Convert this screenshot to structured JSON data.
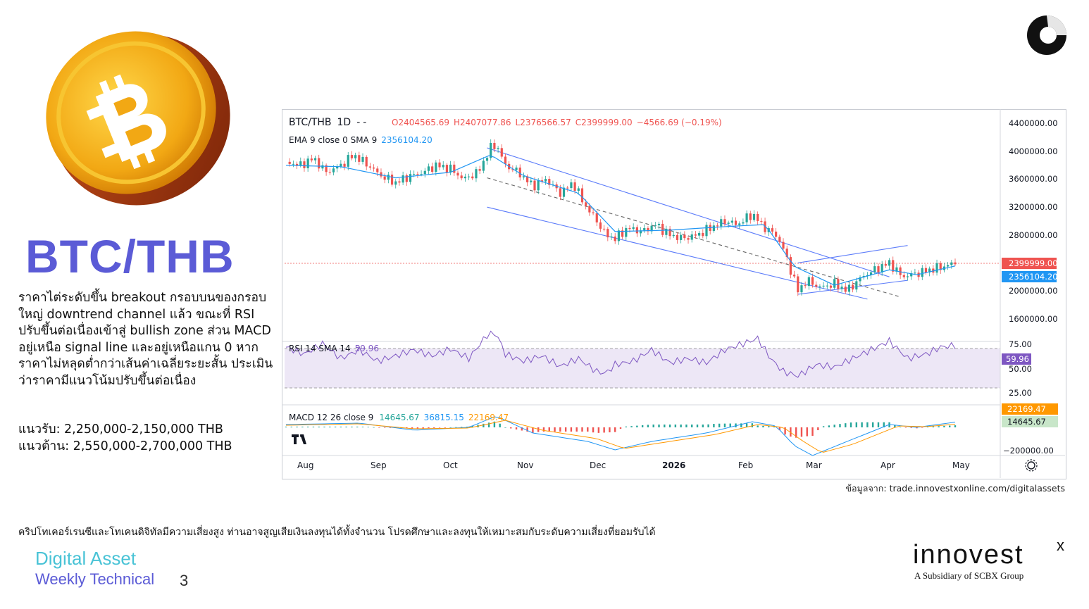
{
  "page": {
    "pair_title": "BTC/THB",
    "analysis_text": "ราคาไต่ระดับขึ้น breakout กรอบบนของกรอบใหญ่ downtrend channel แล้ว ขณะที่ RSI ปรับขึ้นต่อเนื่องเข้าสู่ bullish zone ส่วน MACD อยู่เหนือ signal line และอยู่เหนือแกน 0 หากราคาไม่หลุดต่ำกว่าเส้นค่าเฉลี่ยระยะสั้น ประเมินว่าราคามีแนวโน้มปรับขึ้นต่อเนื่อง",
    "support": "แนวรับ: 2,250,000-2,150,000 THB",
    "resistance": "แนวต้าน: 2,550,000-2,700,000 THB",
    "source_note": "ข้อมูลจาก: trade.innovestxonline.com/digitalassets",
    "disclaimer": "คริปโทเคอร์เรนซีและโทเคนดิจิทัลมีความเสี่ยงสูง ท่านอาจสูญเสียเงินลงทุนได้ทั้งจำนวน โปรดศึกษาและลงทุนให้เหมาะสมกับระดับความเสี่ยงที่ยอมรับได้",
    "footer_title": "Digital Asset",
    "footer_subtitle": "Weekly Technical",
    "page_number": "3",
    "brand_name": "innovest",
    "brand_sup": "x",
    "brand_tagline": "A Subsidiary of SCBX Group",
    "brand_color": "#5b5bd6",
    "accent_color": "#49c3d6",
    "coin_icon": "bitcoin-coin-icon",
    "corner_icon": "ring-logo-icon"
  },
  "chart_data": {
    "type": "candlestick",
    "header": {
      "symbol": "BTC/THB",
      "interval": "1D",
      "dash": "-",
      "open": "O2404565.69",
      "high": "H2407077.86",
      "low": "L2376566.57",
      "close": "C2399999.00",
      "change": "−4566.69 (−0.19%)"
    },
    "ema_legend": {
      "label": "EMA 9 close 0 SMA 9",
      "value": "2356104.20"
    },
    "x_ticks": [
      "Aug",
      "Sep",
      "Oct",
      "Nov",
      "Dec",
      "2026",
      "Feb",
      "Mar",
      "Apr",
      "May"
    ],
    "y_ticks": [
      "4400000.00",
      "4000000.00",
      "3600000.00",
      "3200000.00",
      "2800000.00",
      "2000000.00",
      "1600000.00"
    ],
    "ylim": [
      1500000,
      4500000
    ],
    "last_price": {
      "value": 2399999,
      "label": "2399999.00",
      "color": "#ef5350"
    },
    "ema_last": {
      "value": 2356104.2,
      "label": "2356104.20",
      "color": "#2196f3"
    },
    "price_path": [
      [
        0,
        3850000
      ],
      [
        8,
        3800000
      ],
      [
        15,
        3900000
      ],
      [
        22,
        3700000
      ],
      [
        30,
        3800000
      ],
      [
        37,
        3950000
      ],
      [
        45,
        3800000
      ],
      [
        52,
        3650000
      ],
      [
        60,
        3550000
      ],
      [
        68,
        3650000
      ],
      [
        75,
        3700000
      ],
      [
        82,
        3800000
      ],
      [
        90,
        3750000
      ],
      [
        97,
        3600000
      ],
      [
        105,
        3700000
      ],
      [
        112,
        4050000
      ],
      [
        115,
        4100000
      ],
      [
        120,
        3800000
      ],
      [
        127,
        3700000
      ],
      [
        135,
        3500000
      ],
      [
        142,
        3600000
      ],
      [
        150,
        3400000
      ],
      [
        157,
        3550000
      ],
      [
        163,
        3250000
      ],
      [
        170,
        3000000
      ],
      [
        175,
        2800000
      ],
      [
        180,
        2750000
      ],
      [
        187,
        2900000
      ],
      [
        195,
        2850000
      ],
      [
        202,
        2950000
      ],
      [
        210,
        2800000
      ],
      [
        217,
        2750000
      ],
      [
        225,
        2800000
      ],
      [
        232,
        2900000
      ],
      [
        240,
        3000000
      ],
      [
        247,
        2950000
      ],
      [
        255,
        3100000
      ],
      [
        262,
        2900000
      ],
      [
        268,
        2800000
      ],
      [
        272,
        2600000
      ],
      [
        276,
        2300000
      ],
      [
        280,
        2000000
      ],
      [
        285,
        2150000
      ],
      [
        292,
        2050000
      ],
      [
        300,
        2100000
      ],
      [
        307,
        2000000
      ],
      [
        315,
        2200000
      ],
      [
        322,
        2300000
      ],
      [
        330,
        2400000
      ],
      [
        337,
        2200000
      ],
      [
        345,
        2250000
      ],
      [
        352,
        2300000
      ],
      [
        360,
        2350000
      ],
      [
        366,
        2400000
      ]
    ],
    "ema_path": [
      [
        0,
        3800000
      ],
      [
        30,
        3780000
      ],
      [
        60,
        3620000
      ],
      [
        90,
        3700000
      ],
      [
        112,
        3950000
      ],
      [
        130,
        3650000
      ],
      [
        160,
        3400000
      ],
      [
        180,
        2850000
      ],
      [
        210,
        2870000
      ],
      [
        240,
        2920000
      ],
      [
        262,
        2950000
      ],
      [
        278,
        2350000
      ],
      [
        300,
        2080000
      ],
      [
        330,
        2300000
      ],
      [
        345,
        2230000
      ],
      [
        366,
        2356104
      ]
    ],
    "rsi": {
      "legend_label": "RSI 14 SMA 14",
      "value_label": "59.96",
      "ylim": [
        0,
        100
      ],
      "ticks": [
        "75.00",
        "50.00",
        "25.00"
      ],
      "upper": 70,
      "lower": 30,
      "path": [
        [
          0,
          58
        ],
        [
          10,
          50
        ],
        [
          20,
          62
        ],
        [
          30,
          45
        ],
        [
          40,
          55
        ],
        [
          50,
          42
        ],
        [
          60,
          48
        ],
        [
          70,
          55
        ],
        [
          80,
          48
        ],
        [
          90,
          56
        ],
        [
          100,
          45
        ],
        [
          110,
          72
        ],
        [
          115,
          74
        ],
        [
          120,
          50
        ],
        [
          130,
          42
        ],
        [
          140,
          48
        ],
        [
          150,
          36
        ],
        [
          160,
          45
        ],
        [
          170,
          30
        ],
        [
          175,
          28
        ],
        [
          180,
          38
        ],
        [
          190,
          42
        ],
        [
          200,
          55
        ],
        [
          210,
          40
        ],
        [
          220,
          45
        ],
        [
          230,
          40
        ],
        [
          240,
          55
        ],
        [
          250,
          62
        ],
        [
          258,
          68
        ],
        [
          265,
          45
        ],
        [
          272,
          30
        ],
        [
          280,
          25
        ],
        [
          290,
          38
        ],
        [
          300,
          35
        ],
        [
          310,
          45
        ],
        [
          320,
          55
        ],
        [
          330,
          65
        ],
        [
          340,
          45
        ],
        [
          350,
          50
        ],
        [
          358,
          58
        ],
        [
          366,
          60
        ]
      ]
    },
    "macd": {
      "legend_label": "MACD 12 26 close 9",
      "histogram_label": "14645.67",
      "macd_label": "36815.15",
      "signal_label": "22169.47",
      "ticks": [
        "−200000.00"
      ],
      "signal_badge": "22169.47",
      "hist_badge": "14645.67",
      "ylim": [
        -260000,
        120000
      ],
      "macd_line": [
        [
          0,
          20000
        ],
        [
          40,
          30000
        ],
        [
          70,
          -20000
        ],
        [
          100,
          0
        ],
        [
          115,
          80000
        ],
        [
          135,
          -40000
        ],
        [
          165,
          -100000
        ],
        [
          180,
          -160000
        ],
        [
          200,
          -100000
        ],
        [
          230,
          -40000
        ],
        [
          255,
          40000
        ],
        [
          268,
          10000
        ],
        [
          278,
          -130000
        ],
        [
          288,
          -200000
        ],
        [
          305,
          -110000
        ],
        [
          330,
          20000
        ],
        [
          345,
          0
        ],
        [
          366,
          36815
        ]
      ],
      "signal_line": [
        [
          0,
          15000
        ],
        [
          40,
          25000
        ],
        [
          70,
          -10000
        ],
        [
          100,
          -5000
        ],
        [
          120,
          50000
        ],
        [
          140,
          -20000
        ],
        [
          170,
          -80000
        ],
        [
          185,
          -150000
        ],
        [
          205,
          -110000
        ],
        [
          235,
          -50000
        ],
        [
          258,
          20000
        ],
        [
          272,
          0
        ],
        [
          283,
          -100000
        ],
        [
          293,
          -180000
        ],
        [
          310,
          -120000
        ],
        [
          335,
          10000
        ],
        [
          350,
          5000
        ],
        [
          366,
          22169
        ]
      ]
    },
    "trendlines": {
      "channel_upper": [
        [
          110,
          4050000
        ],
        [
          330,
          2200000
        ]
      ],
      "channel_lower": [
        [
          110,
          3200000
        ],
        [
          318,
          1880000
        ]
      ],
      "channel_mid": [
        [
          110,
          3620000
        ],
        [
          335,
          1920000
        ]
      ],
      "short_upper": [
        [
          280,
          2400000
        ],
        [
          340,
          2650000
        ]
      ],
      "short_lower": [
        [
          280,
          1950000
        ],
        [
          340,
          2150000
        ]
      ]
    },
    "title": "",
    "xlabel": "",
    "ylabel": "",
    "grid": false,
    "legend_position": "top-left"
  }
}
